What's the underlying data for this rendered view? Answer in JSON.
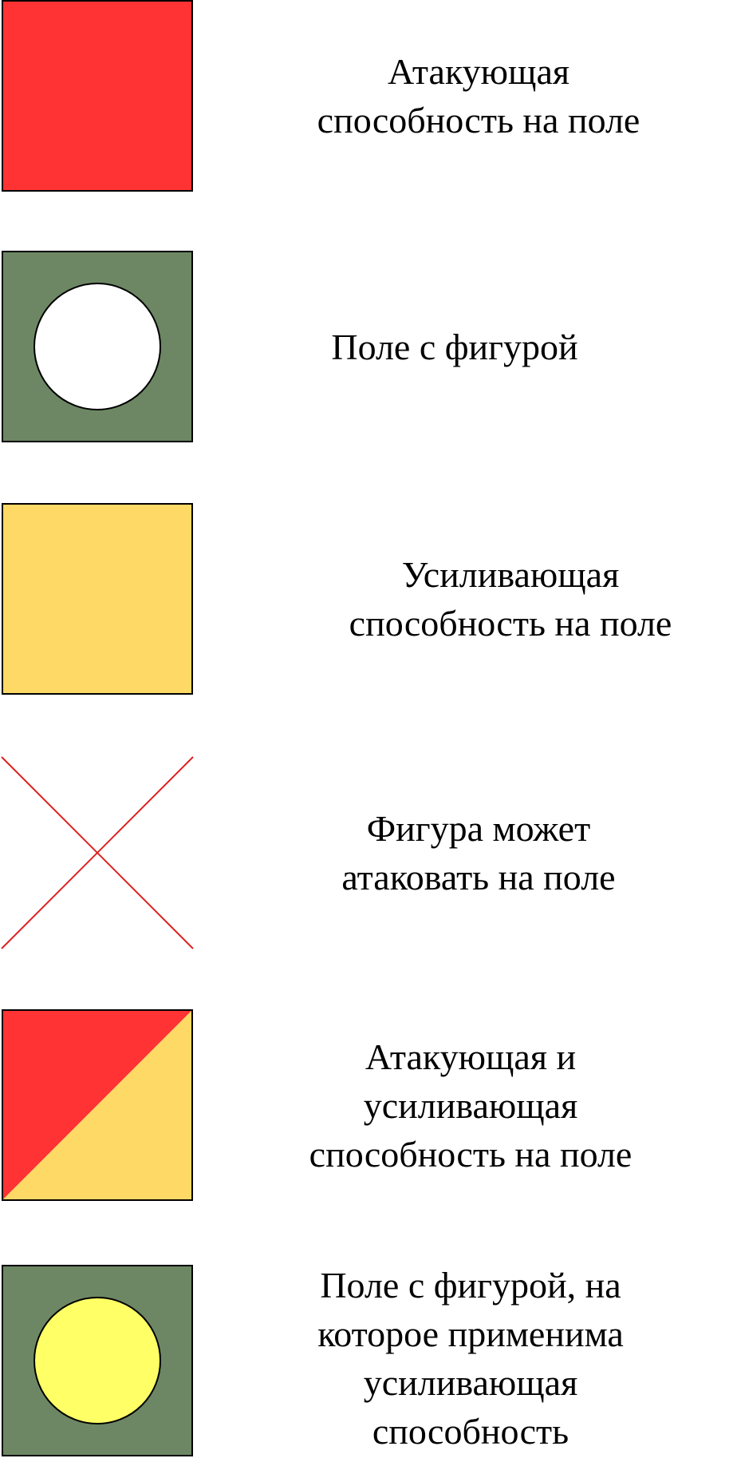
{
  "colors": {
    "attack_red": "#FF3333",
    "field_green": "#6D8764",
    "boost_yellow": "#FFD966",
    "highlight_yellow": "#FFFF66",
    "piece_white": "#FFFFFF",
    "cross_red": "#DD2222",
    "outline": "#000000"
  },
  "legend": [
    {
      "icon": "red-square",
      "text": "Атакующая\nспособность на поле"
    },
    {
      "icon": "green-square-white-circle",
      "text": "Поле с фигурой"
    },
    {
      "icon": "yellow-square",
      "text": "Усиливающая\nспособность на поле"
    },
    {
      "icon": "red-cross",
      "text": "Фигура может\nатаковать на поле"
    },
    {
      "icon": "red-yellow-diagonal-square",
      "text": "Атакующая и\nусиливающая\nспособность на поле"
    },
    {
      "icon": "green-square-yellow-circle",
      "text": "Поле с фигурой, на\nкоторое применима\nусиливающая\nспособность"
    }
  ]
}
